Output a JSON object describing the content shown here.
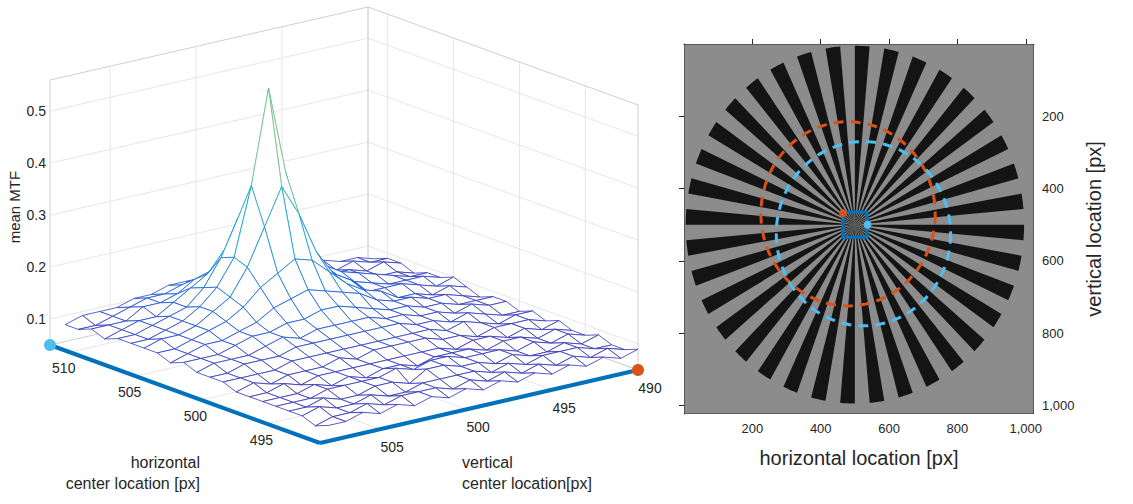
{
  "chart_data": [
    {
      "type": "surface",
      "zlabel": "mean MTF",
      "xlabel": "horizontal center location [px]",
      "ylabel": "vertical center location[px]",
      "xlim": [
        491,
        511.5
      ],
      "ylim": [
        490,
        508.5
      ],
      "zlim": [
        0.05,
        0.56
      ],
      "xticks": [
        495,
        500,
        505,
        510
      ],
      "yticks": [
        490,
        495,
        500,
        505
      ],
      "zticks": [
        0.1,
        0.2,
        0.3,
        0.4,
        0.5
      ],
      "grid": true,
      "color": "#0072bd",
      "markers": [
        {
          "x": 511.5,
          "y": 508.5,
          "color": "#4dbeee"
        },
        {
          "x": 491,
          "y": 490,
          "color": "#d95319"
        }
      ],
      "x": [
        491,
        492,
        493,
        494,
        495,
        496,
        497,
        498,
        499,
        500,
        501,
        502,
        503,
        504,
        505,
        506,
        507,
        508,
        509,
        510,
        511
      ],
      "y": [
        490,
        491,
        492,
        493,
        494,
        495,
        496,
        497,
        498,
        499,
        500,
        501,
        502,
        503,
        504,
        505,
        506,
        507,
        508
      ],
      "z": [
        [
          0.09,
          0.08,
          0.08,
          0.09,
          0.08,
          0.08,
          0.09,
          0.08,
          0.09,
          0.08,
          0.09,
          0.09,
          0.08,
          0.09,
          0.1,
          0.09,
          0.09,
          0.08,
          0.09,
          0.09,
          0.08
        ],
        [
          0.08,
          0.09,
          0.08,
          0.08,
          0.09,
          0.09,
          0.08,
          0.09,
          0.09,
          0.08,
          0.09,
          0.09,
          0.09,
          0.1,
          0.09,
          0.1,
          0.09,
          0.09,
          0.1,
          0.09,
          0.09
        ],
        [
          0.09,
          0.08,
          0.09,
          0.09,
          0.08,
          0.08,
          0.09,
          0.09,
          0.08,
          0.09,
          0.1,
          0.09,
          0.1,
          0.09,
          0.1,
          0.1,
          0.1,
          0.09,
          0.09,
          0.1,
          0.09
        ],
        [
          0.08,
          0.09,
          0.09,
          0.08,
          0.09,
          0.09,
          0.08,
          0.09,
          0.09,
          0.1,
          0.09,
          0.1,
          0.1,
          0.1,
          0.11,
          0.1,
          0.11,
          0.1,
          0.1,
          0.09,
          0.1
        ],
        [
          0.09,
          0.08,
          0.09,
          0.08,
          0.08,
          0.09,
          0.09,
          0.08,
          0.1,
          0.09,
          0.1,
          0.1,
          0.11,
          0.1,
          0.11,
          0.11,
          0.12,
          0.11,
          0.1,
          0.11,
          0.1
        ],
        [
          0.08,
          0.09,
          0.08,
          0.09,
          0.09,
          0.08,
          0.09,
          0.09,
          0.09,
          0.1,
          0.1,
          0.11,
          0.11,
          0.12,
          0.11,
          0.12,
          0.13,
          0.12,
          0.11,
          0.11,
          0.1
        ],
        [
          0.09,
          0.08,
          0.09,
          0.08,
          0.09,
          0.09,
          0.08,
          0.09,
          0.1,
          0.1,
          0.11,
          0.11,
          0.12,
          0.13,
          0.14,
          0.14,
          0.15,
          0.13,
          0.13,
          0.12,
          0.11
        ],
        [
          0.08,
          0.09,
          0.08,
          0.09,
          0.09,
          0.09,
          0.09,
          0.1,
          0.1,
          0.11,
          0.11,
          0.12,
          0.14,
          0.15,
          0.16,
          0.17,
          0.16,
          0.15,
          0.14,
          0.12,
          0.12
        ],
        [
          0.09,
          0.08,
          0.09,
          0.09,
          0.1,
          0.09,
          0.09,
          0.1,
          0.1,
          0.11,
          0.12,
          0.13,
          0.15,
          0.18,
          0.21,
          0.23,
          0.2,
          0.18,
          0.15,
          0.13,
          0.12
        ],
        [
          0.08,
          0.09,
          0.09,
          0.1,
          0.1,
          0.08,
          0.09,
          0.1,
          0.1,
          0.11,
          0.12,
          0.14,
          0.16,
          0.21,
          0.29,
          0.36,
          0.27,
          0.2,
          0.16,
          0.14,
          0.12
        ],
        [
          0.09,
          0.08,
          0.09,
          0.1,
          0.09,
          0.09,
          0.09,
          0.1,
          0.1,
          0.11,
          0.12,
          0.14,
          0.17,
          0.22,
          0.35,
          0.53,
          0.33,
          0.22,
          0.17,
          0.14,
          0.12
        ],
        [
          0.08,
          0.09,
          0.09,
          0.08,
          0.1,
          0.09,
          0.09,
          0.09,
          0.1,
          0.11,
          0.12,
          0.13,
          0.16,
          0.2,
          0.28,
          0.35,
          0.28,
          0.21,
          0.16,
          0.13,
          0.12
        ],
        [
          0.09,
          0.09,
          0.08,
          0.09,
          0.09,
          0.08,
          0.09,
          0.1,
          0.1,
          0.11,
          0.11,
          0.13,
          0.15,
          0.18,
          0.21,
          0.22,
          0.21,
          0.17,
          0.15,
          0.13,
          0.12
        ],
        [
          0.08,
          0.09,
          0.08,
          0.09,
          0.09,
          0.09,
          0.09,
          0.09,
          0.1,
          0.11,
          0.12,
          0.12,
          0.13,
          0.15,
          0.16,
          0.17,
          0.16,
          0.15,
          0.13,
          0.12,
          0.11
        ],
        [
          0.09,
          0.08,
          0.09,
          0.08,
          0.09,
          0.08,
          0.09,
          0.09,
          0.1,
          0.1,
          0.11,
          0.12,
          0.12,
          0.13,
          0.14,
          0.14,
          0.13,
          0.13,
          0.12,
          0.12,
          0.11
        ],
        [
          0.08,
          0.09,
          0.08,
          0.08,
          0.09,
          0.09,
          0.08,
          0.09,
          0.09,
          0.1,
          0.1,
          0.11,
          0.11,
          0.12,
          0.12,
          0.12,
          0.12,
          0.11,
          0.12,
          0.11,
          0.1
        ],
        [
          0.09,
          0.08,
          0.08,
          0.09,
          0.08,
          0.08,
          0.09,
          0.08,
          0.09,
          0.1,
          0.1,
          0.1,
          0.11,
          0.11,
          0.11,
          0.11,
          0.11,
          0.11,
          0.1,
          0.1,
          0.1
        ],
        [
          0.08,
          0.08,
          0.09,
          0.08,
          0.08,
          0.08,
          0.08,
          0.09,
          0.09,
          0.09,
          0.1,
          0.1,
          0.1,
          0.1,
          0.11,
          0.1,
          0.1,
          0.1,
          0.1,
          0.09,
          0.1
        ],
        [
          0.08,
          0.07,
          0.08,
          0.08,
          0.08,
          0.08,
          0.08,
          0.08,
          0.09,
          0.09,
          0.09,
          0.1,
          0.09,
          0.1,
          0.1,
          0.1,
          0.1,
          0.09,
          0.1,
          0.09,
          0.09
        ]
      ]
    },
    {
      "type": "image",
      "xlabel": "horizontal location [px]",
      "ylabel": "vertical location [px]",
      "xlim": [
        0,
        1024
      ],
      "ylim": [
        1024,
        0
      ],
      "xticks": [
        200,
        400,
        600,
        800,
        1000
      ],
      "yticks": [
        200,
        400,
        600,
        800,
        1000
      ],
      "star": {
        "center": [
          500,
          500
        ],
        "radius": 495,
        "spokes": 36
      },
      "circles": [
        {
          "center": [
            480,
            470
          ],
          "radius": 255,
          "color": "#d95319",
          "line_style": "dashed"
        },
        {
          "center": [
            525,
            525
          ],
          "radius": 255,
          "color": "#4dbeee",
          "line_style": "dashed"
        }
      ],
      "box": {
        "x": [
          465,
          535
        ],
        "y": [
          465,
          535
        ],
        "color": "#0072bd"
      },
      "markers": [
        {
          "x": 465,
          "y": 468,
          "color": "#d95319"
        },
        {
          "x": 537,
          "y": 500,
          "color": "#4dbeee"
        }
      ]
    }
  ]
}
